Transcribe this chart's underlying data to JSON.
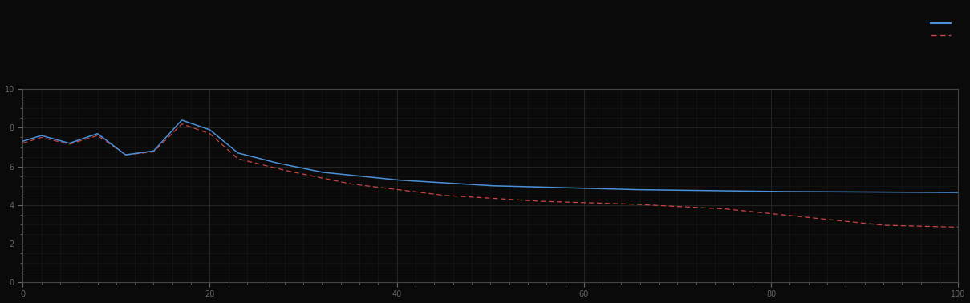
{
  "background_color": "#0a0a0a",
  "plot_bg_color": "#0a0a0a",
  "grid_color_major": "#2a2a2a",
  "grid_color_minor": "#1a1a1a",
  "line1_color": "#4a90d9",
  "line2_color": "#cc4444",
  "line1_label": "",
  "line2_label": "",
  "xlim": [
    0,
    100
  ],
  "ylim": [
    0,
    10
  ],
  "figsize": [
    12.09,
    3.78
  ],
  "dpi": 100,
  "spine_color": "#444444",
  "tick_color": "#666666",
  "tick_labelsize": 7,
  "major_x_step": 20,
  "major_y_step": 2,
  "minor_x_step": 2,
  "minor_y_step": 0.5
}
